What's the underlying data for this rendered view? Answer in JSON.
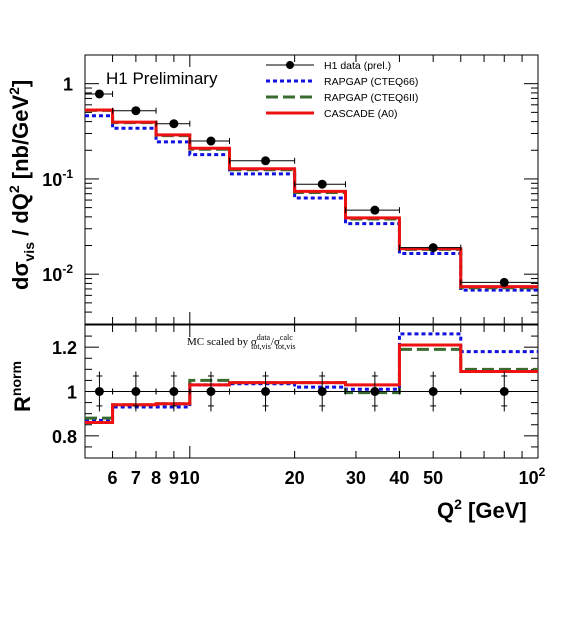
{
  "chart_data": [
    {
      "type": "line",
      "panel": "top",
      "ylabel": "dσvis / dQ² [nb/GeV²]",
      "ylabel_parts": {
        "d1": "d",
        "sigma": "σ",
        "vis": "vis",
        "mid": " / dQ",
        "sq": "2",
        "unit": " [nb/GeV",
        "usq": "2",
        "close": "]"
      },
      "xscale": "log",
      "yscale": "log",
      "xlim": [
        5,
        100
      ],
      "ylim": [
        0.003,
        2
      ],
      "yticks": [
        {
          "v": 1,
          "label_main": "1",
          "label_exp": ""
        },
        {
          "v": 0.1,
          "label_main": "10",
          "label_exp": "-1"
        },
        {
          "v": 0.01,
          "label_main": "10",
          "label_exp": "-2"
        }
      ],
      "annotation": "H1 Preliminary",
      "legend_position": "top-right",
      "bin_edges": [
        5,
        6,
        8,
        10,
        13,
        20,
        28,
        40,
        60,
        100
      ],
      "data": {
        "name": "H1 data (prel.)",
        "x": [
          5.5,
          7,
          9,
          11.5,
          16.5,
          24,
          34,
          50,
          80
        ],
        "y": [
          0.78,
          0.52,
          0.38,
          0.25,
          0.155,
          0.088,
          0.047,
          0.019,
          0.0082
        ]
      },
      "series": [
        {
          "name": "RAPGAP (CTEQ66)",
          "color": "#1010e0",
          "style": "dotted",
          "values": [
            0.46,
            0.34,
            0.245,
            0.18,
            0.113,
            0.063,
            0.034,
            0.0165,
            0.0068
          ]
        },
        {
          "name": "RAPGAP (CTEQ6II)",
          "color": "#3a6b2e",
          "style": "dashed",
          "values": [
            0.525,
            0.39,
            0.285,
            0.205,
            0.125,
            0.072,
            0.038,
            0.0182,
            0.0072
          ]
        },
        {
          "name": "CASCADE (A0)",
          "color": "#ee1111",
          "style": "solid",
          "values": [
            0.53,
            0.395,
            0.29,
            0.21,
            0.128,
            0.074,
            0.039,
            0.0185,
            0.0074
          ]
        }
      ]
    },
    {
      "type": "line",
      "panel": "bottom",
      "ylabel_main": "R",
      "ylabel_sup": "norm",
      "xlabel_main": "Q",
      "xlabel_sup": "2",
      "xlabel_unit": " [GeV]",
      "xscale": "log",
      "xlim": [
        5,
        100
      ],
      "ylim": [
        0.7,
        1.3
      ],
      "yticks": [
        {
          "v": 0.8,
          "label": "0.8"
        },
        {
          "v": 1,
          "label": "1"
        },
        {
          "v": 1.2,
          "label": "1.2"
        }
      ],
      "xticks": [
        {
          "v": 6,
          "label_main": "6",
          "label_exp": ""
        },
        {
          "v": 7,
          "label_main": "7",
          "label_exp": ""
        },
        {
          "v": 8,
          "label_main": "8",
          "label_exp": ""
        },
        {
          "v": 9,
          "label_main": "9",
          "label_exp": ""
        },
        {
          "v": 10,
          "label_main": "10",
          "label_exp": ""
        },
        {
          "v": 20,
          "label_main": "20",
          "label_exp": ""
        },
        {
          "v": 30,
          "label_main": "30",
          "label_exp": ""
        },
        {
          "v": 40,
          "label_main": "40",
          "label_exp": ""
        },
        {
          "v": 50,
          "label_main": "50",
          "label_exp": ""
        },
        {
          "v": 100,
          "label_main": "10",
          "label_exp": "2"
        }
      ],
      "note": {
        "pre": "MC scaled by σ",
        "sup1": "data",
        "sub1": "tot,vis",
        "slash": "/σ",
        "sup2": "calc",
        "sub2": "tot,vis"
      },
      "bin_edges": [
        5,
        6,
        8,
        10,
        13,
        20,
        28,
        40,
        60,
        100
      ],
      "data": {
        "x": [
          5.5,
          7,
          9,
          11.5,
          16.5,
          24,
          34,
          50,
          80
        ],
        "y": [
          1,
          1,
          1,
          1,
          1,
          1,
          1,
          1,
          1
        ]
      },
      "series": [
        {
          "name": "RAPGAP (CTEQ66)",
          "color": "#1010e0",
          "style": "dotted",
          "values": [
            0.87,
            0.93,
            0.93,
            1.03,
            1.035,
            1.02,
            1.01,
            1.26,
            1.18
          ]
        },
        {
          "name": "RAPGAP (CTEQ6II)",
          "color": "#3a6b2e",
          "style": "dashed",
          "values": [
            0.88,
            0.94,
            0.945,
            1.05,
            1.04,
            1.04,
            0.995,
            1.19,
            1.1
          ]
        },
        {
          "name": "CASCADE (A0)",
          "color": "#ee1111",
          "style": "solid",
          "values": [
            0.86,
            0.94,
            0.945,
            1.03,
            1.04,
            1.04,
            1.03,
            1.21,
            1.09
          ]
        }
      ]
    }
  ]
}
